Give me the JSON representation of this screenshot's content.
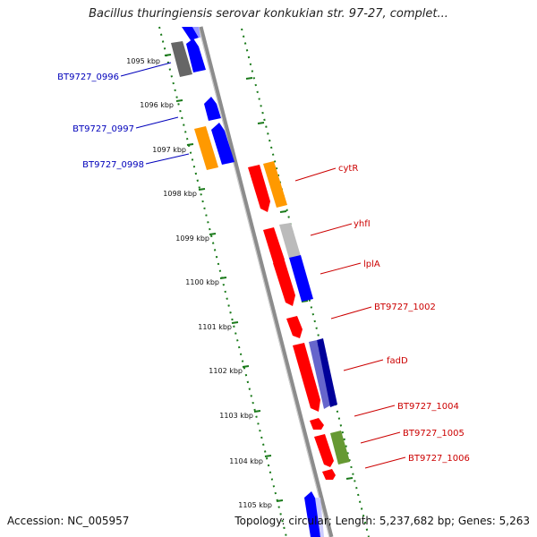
{
  "title": "Bacillus thuringiensis serovar konkukian str. 97-27, complet...",
  "accession": "Accession: NC_005957",
  "topology": "Topology: circular; Length: 5,237,682 bp; Genes: 5,263",
  "colors": {
    "backbone": "#8c8c8c",
    "tick": "#1a7a1a",
    "forward_label": "#0000bb",
    "reverse_label": "#cc0000",
    "blue": "#0000ff",
    "red": "#ff0000",
    "orange": "#ff9900",
    "gray": "#666666",
    "lightgray": "#bbbbbb",
    "navy": "#000099",
    "slateblue": "#6666cc",
    "olive": "#669933"
  },
  "kbp_labels": [
    "1095 kbp",
    "1096 kbp",
    "1097 kbp",
    "1098 kbp",
    "1099 kbp",
    "1100 kbp",
    "1101 kbp",
    "1102 kbp",
    "1103 kbp",
    "1104 kbp",
    "1105 kbp"
  ],
  "left_gene_labels": [
    "BT9727_0996",
    "BT9727_0997",
    "BT9727_0998"
  ],
  "right_gene_labels": [
    "cytR",
    "yhfI",
    "lplA",
    "BT9727_1002",
    "fadD",
    "BT9727_1004",
    "BT9727_1005",
    "BT9727_1006"
  ]
}
